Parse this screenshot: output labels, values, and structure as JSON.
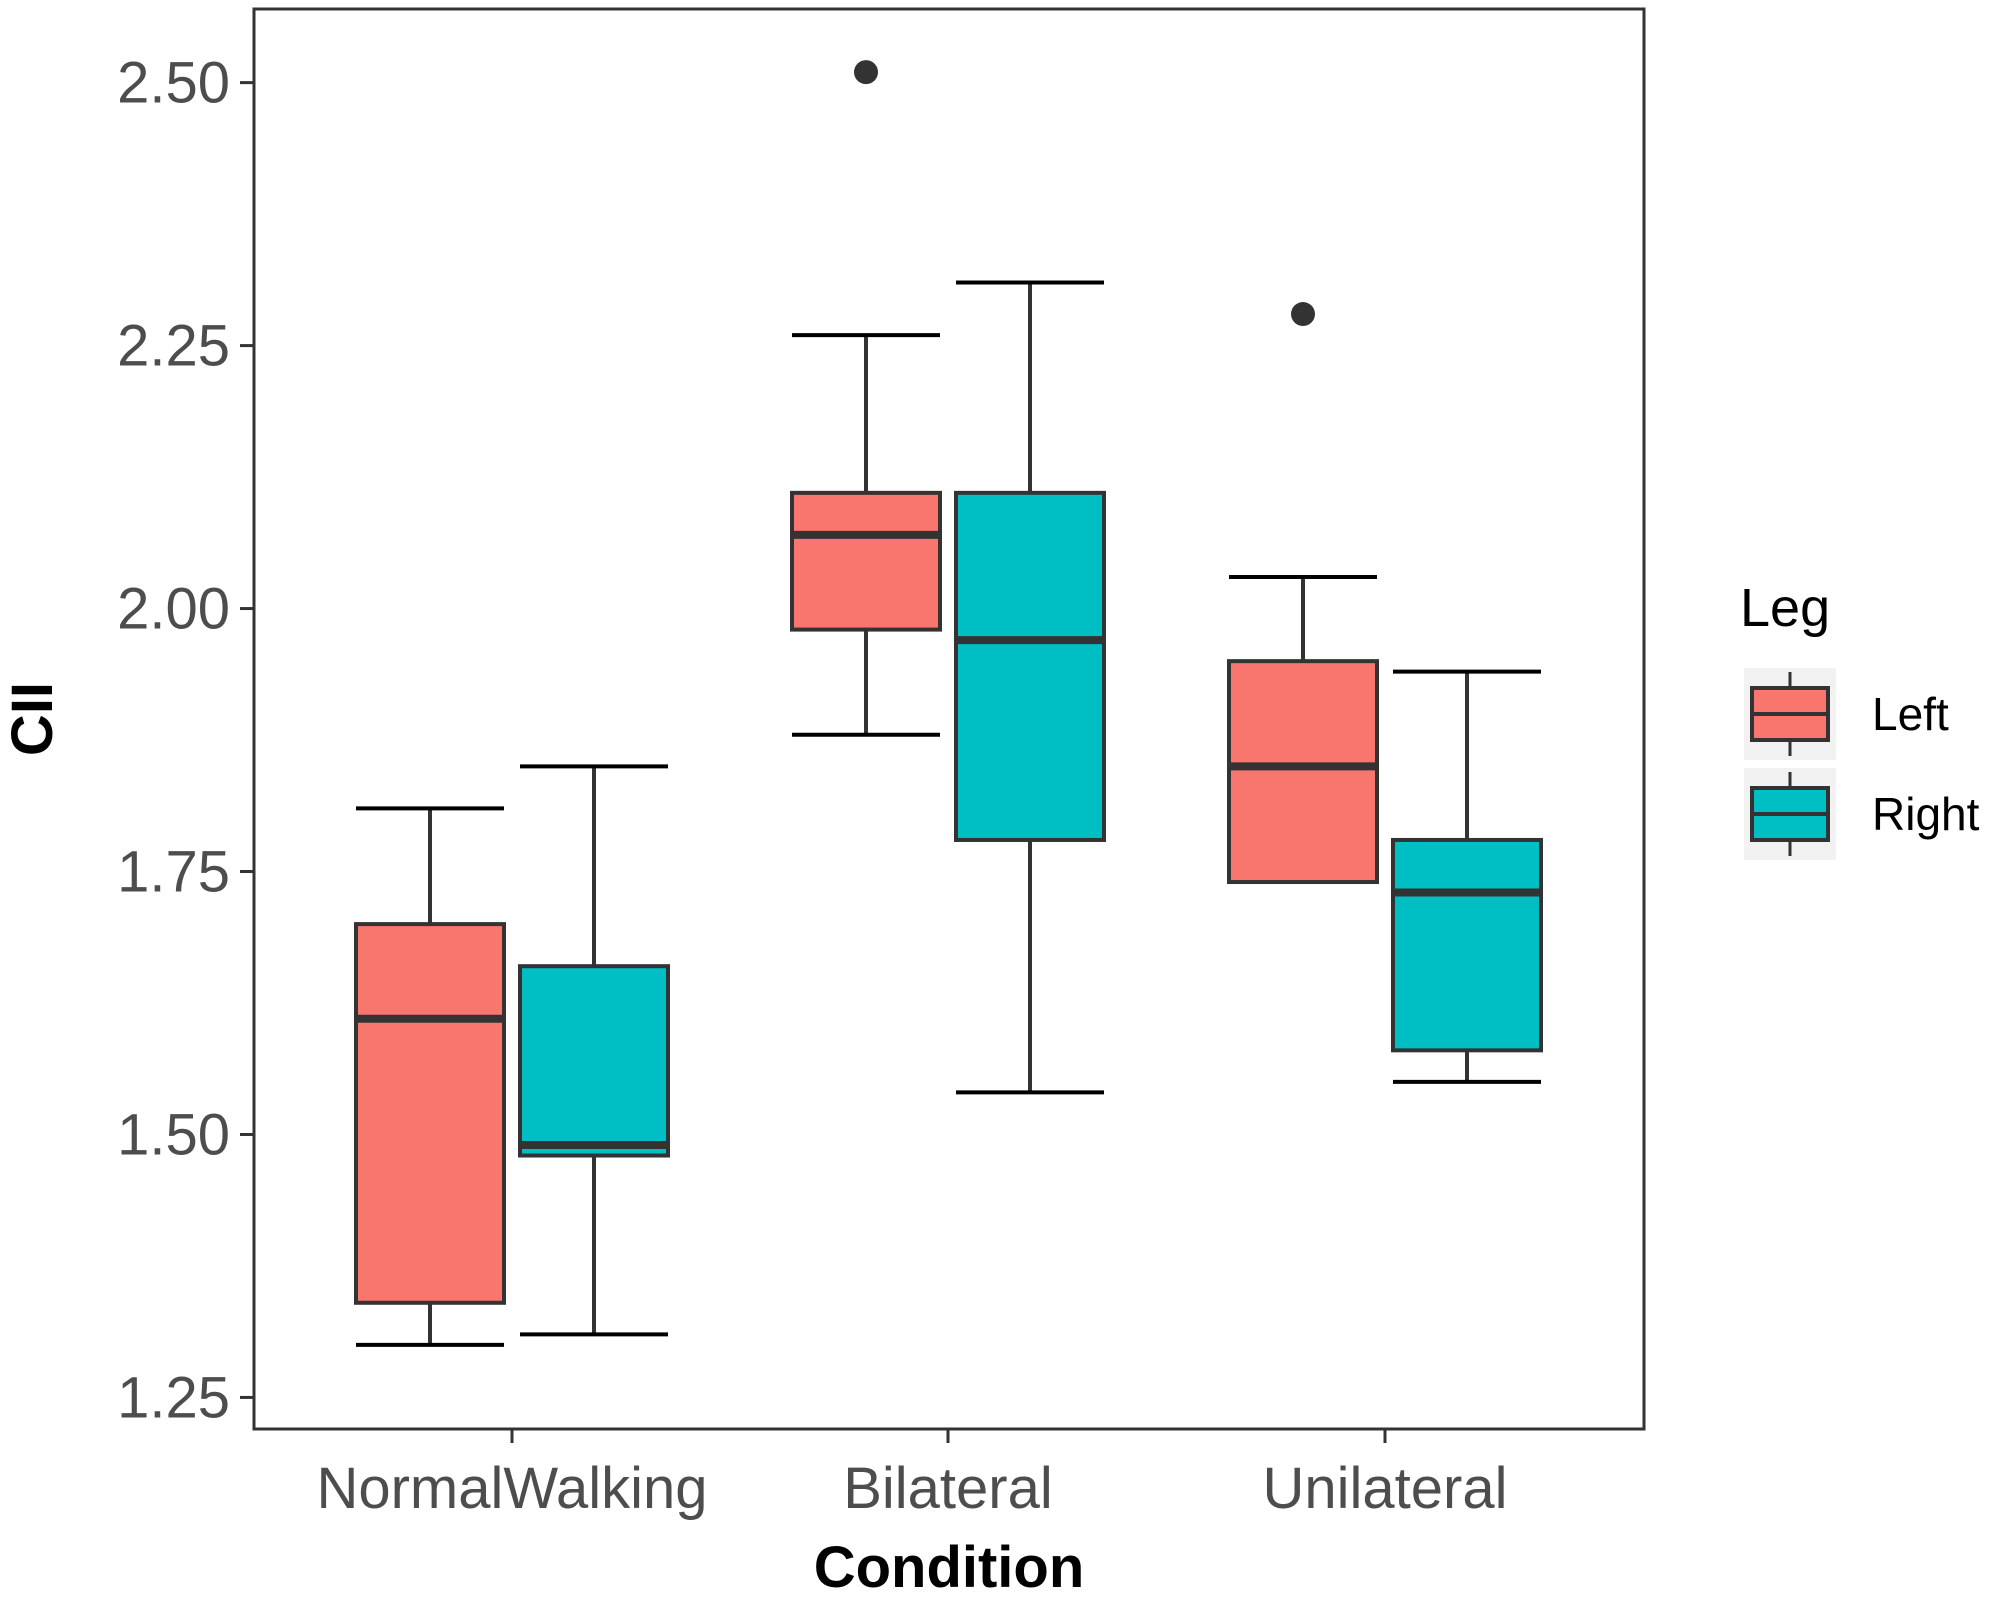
{
  "chart_data": {
    "type": "boxplot",
    "title": "",
    "xlabel": "Condition",
    "ylabel": "CII",
    "ylim": [
      1.22,
      2.57
    ],
    "yticks": [
      1.25,
      1.5,
      1.75,
      2.0,
      2.25,
      2.5
    ],
    "ytick_labels": [
      "1.25",
      "1.50",
      "1.75",
      "2.00",
      "2.25",
      "2.50"
    ],
    "categories": [
      "NormalWalking",
      "Bilateral",
      "Unilateral"
    ],
    "grid": false,
    "legend": {
      "title": "Leg",
      "placement": "right",
      "entries": [
        {
          "label": "Left",
          "color": "#F8766D"
        },
        {
          "label": "Right",
          "color": "#00BFC4"
        }
      ]
    },
    "series": [
      {
        "name": "Left",
        "color": "#F8766D",
        "boxes": [
          {
            "category": "NormalWalking",
            "whisker_low": 1.3,
            "q1": 1.34,
            "median": 1.61,
            "q3": 1.7,
            "whisker_high": 1.81,
            "outliers": []
          },
          {
            "category": "Bilateral",
            "whisker_low": 1.88,
            "q1": 1.98,
            "median": 2.07,
            "q3": 2.11,
            "whisker_high": 2.26,
            "outliers": [
              2.51
            ]
          },
          {
            "category": "Unilateral",
            "whisker_low": 1.74,
            "q1": 1.74,
            "median": 1.85,
            "q3": 1.95,
            "whisker_high": 2.03,
            "outliers": [
              2.28
            ]
          }
        ]
      },
      {
        "name": "Right",
        "color": "#00BFC4",
        "boxes": [
          {
            "category": "NormalWalking",
            "whisker_low": 1.31,
            "q1": 1.48,
            "median": 1.49,
            "q3": 1.66,
            "whisker_high": 1.85,
            "outliers": []
          },
          {
            "category": "Bilateral",
            "whisker_low": 1.54,
            "q1": 1.78,
            "median": 1.97,
            "q3": 2.11,
            "whisker_high": 2.31,
            "outliers": []
          },
          {
            "category": "Unilateral",
            "whisker_low": 1.55,
            "q1": 1.58,
            "median": 1.73,
            "q3": 1.78,
            "whisker_high": 1.94,
            "outliers": []
          }
        ]
      }
    ]
  },
  "colors": {
    "box_outline": "#333333",
    "axis": "#333333",
    "tick_text": "#4d4d4d",
    "legend_key_bg": "#f2f2f2"
  }
}
